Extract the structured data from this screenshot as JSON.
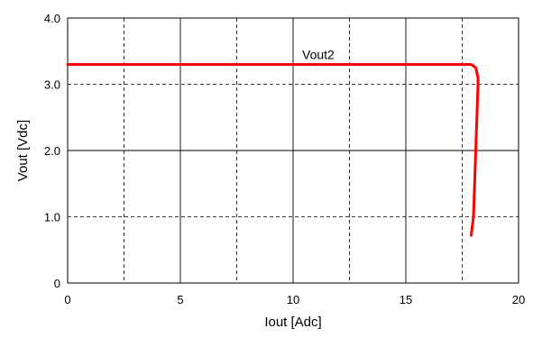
{
  "chart_data": {
    "type": "line",
    "xlabel": "Iout [Adc]",
    "ylabel": "Vout [Vdc]",
    "xlim": [
      0,
      20
    ],
    "ylim": [
      0,
      4.0
    ],
    "x_ticks": [
      0,
      5,
      10,
      15,
      20
    ],
    "x_tick_labels": [
      "0",
      "5",
      "10",
      "15",
      "20"
    ],
    "y_ticks": [
      0,
      1.0,
      2.0,
      3.0,
      4.0
    ],
    "y_tick_labels": [
      "0",
      "1.0",
      "2.0",
      "3.0",
      "4.0"
    ],
    "grid": true,
    "series": [
      {
        "name": "Vout2",
        "color": "#ff0000",
        "x": [
          0,
          17.9,
          18.1,
          18.2,
          18.2,
          18.15,
          18.1,
          18.05,
          18.0,
          17.9
        ],
        "y": [
          3.3,
          3.3,
          3.25,
          3.1,
          3.0,
          2.5,
          2.0,
          1.5,
          1.0,
          0.72
        ]
      }
    ]
  }
}
